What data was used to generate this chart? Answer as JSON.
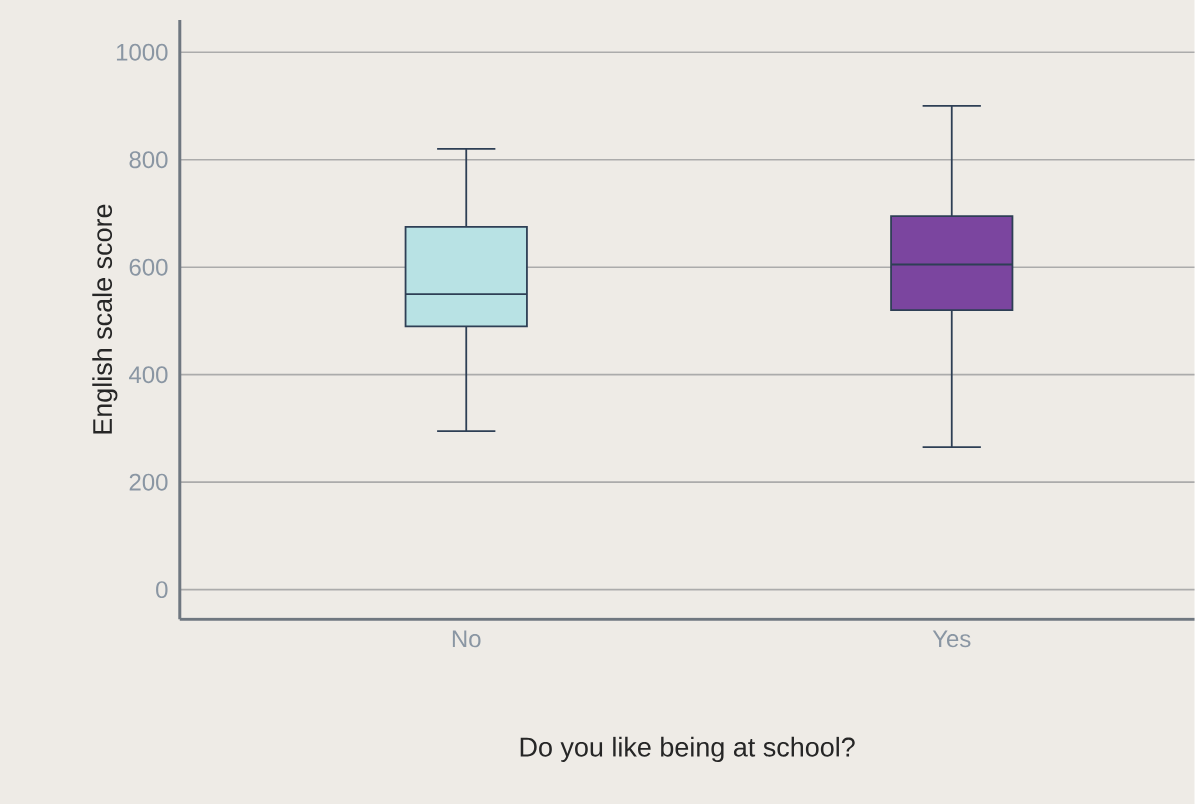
{
  "chart_data": {
    "type": "box",
    "xlabel": "Do you like being at school?",
    "ylabel": "English scale score",
    "categories": [
      "No",
      "Yes"
    ],
    "boxes": [
      {
        "low": 295,
        "q1": 490,
        "median": 550,
        "q3": 675,
        "high": 820
      },
      {
        "low": 265,
        "q1": 520,
        "median": 605,
        "q3": 695,
        "high": 900
      }
    ],
    "colors": [
      "#b8e2e4",
      "#7b459f"
    ],
    "ylim": [
      -55,
      1060
    ],
    "yticks": [
      0,
      200,
      400,
      600,
      800,
      1000
    ],
    "grid": "y"
  }
}
